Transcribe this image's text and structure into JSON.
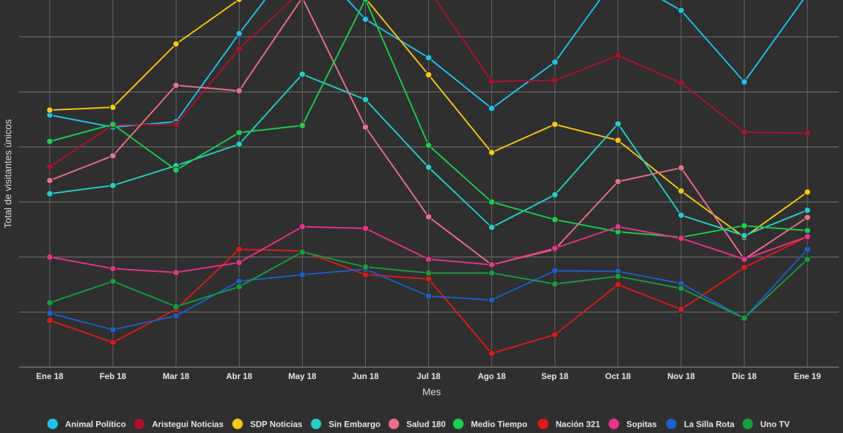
{
  "chart_data": {
    "type": "line",
    "title": "",
    "xlabel": "Mes",
    "ylabel": "Total de visitantes únicos",
    "categories": [
      "Ene 18",
      "Feb 18",
      "Mar 18",
      "Abr 18",
      "May 18",
      "Jun 18",
      "Jul 18",
      "Ago 18",
      "Sep 18",
      "Oct 18",
      "Nov 18",
      "Dic 18",
      "Ene 19"
    ],
    "ylim": [
      0,
      7
    ],
    "y_tick_labels_shown": false,
    "grid": true,
    "legend_position": "bottom",
    "series": [
      {
        "name": "Animal Político",
        "color": "#18c5f0",
        "values": [
          4.58,
          4.36,
          4.46,
          6.06,
          7.56,
          6.32,
          5.62,
          4.7,
          5.54,
          7.13,
          6.48,
          5.18,
          6.78
        ]
      },
      {
        "name": "Aristegui Noticias",
        "color": "#b0102e",
        "values": [
          3.64,
          4.4,
          4.41,
          5.78,
          6.85,
          6.68,
          6.86,
          5.19,
          5.21,
          5.66,
          5.16,
          4.27,
          4.25
        ]
      },
      {
        "name": "SDP Noticias",
        "color": "#f7c90a",
        "values": [
          4.67,
          4.72,
          5.87,
          6.68,
          7.35,
          6.7,
          5.31,
          3.9,
          4.41,
          4.12,
          3.2,
          2.36,
          3.18
        ]
      },
      {
        "name": "Sin Embargo",
        "color": "#1fd2c8",
        "values": [
          3.15,
          3.3,
          3.66,
          4.05,
          5.32,
          4.86,
          3.63,
          2.54,
          3.13,
          4.42,
          2.76,
          2.39,
          2.85
        ]
      },
      {
        "name": "Salud 180",
        "color": "#ef6f8a",
        "values": [
          3.39,
          3.84,
          5.12,
          5.02,
          6.71,
          4.36,
          2.73,
          1.86,
          2.14,
          3.37,
          3.62,
          1.96,
          2.72
        ]
      },
      {
        "name": "Medio Tiempo",
        "color": "#15d24a",
        "values": [
          4.1,
          4.41,
          3.58,
          4.26,
          4.39,
          6.68,
          4.03,
          3.0,
          2.68,
          2.46,
          2.36,
          2.57,
          2.48
        ]
      },
      {
        "name": "Nación 321",
        "color": "#ea1616",
        "values": [
          0.85,
          0.45,
          1.05,
          2.14,
          2.11,
          1.68,
          1.6,
          0.25,
          0.59,
          1.5,
          1.05,
          1.81,
          2.37
        ]
      },
      {
        "name": "Sopitas",
        "color": "#ef2f8c",
        "values": [
          2.0,
          1.79,
          1.72,
          1.9,
          2.55,
          2.52,
          1.96,
          1.86,
          2.16,
          2.55,
          2.34,
          1.96,
          2.37
        ]
      },
      {
        "name": "La Silla Rota",
        "color": "#1a5fd2",
        "values": [
          0.98,
          0.68,
          0.93,
          1.56,
          1.68,
          1.78,
          1.29,
          1.22,
          1.75,
          1.74,
          1.52,
          0.89,
          2.14
        ]
      },
      {
        "name": "Uno TV",
        "color": "#12a03c",
        "values": [
          1.17,
          1.56,
          1.1,
          1.46,
          2.09,
          1.82,
          1.71,
          1.71,
          1.51,
          1.65,
          1.43,
          0.89,
          1.96
        ]
      }
    ]
  }
}
